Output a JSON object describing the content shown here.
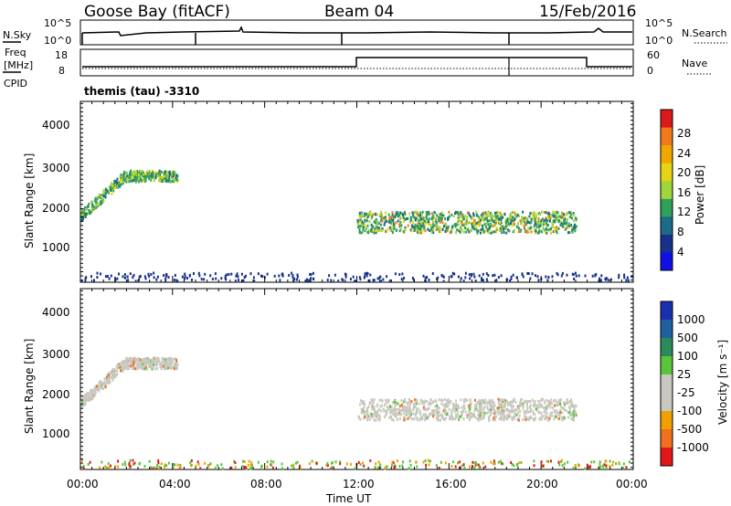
{
  "header": {
    "station": "Goose Bay (fitACF)",
    "beam": "Beam 04",
    "date": "15/Feb/2016"
  },
  "noise_panel": {
    "left_label": "N.Sky",
    "left_ticks": [
      "10^5",
      "10^0"
    ],
    "right_ticks": [
      "10^5",
      "10^0"
    ],
    "right_label": "N.Search"
  },
  "freq_panel": {
    "left_label_line1": "Freq",
    "left_label_line2": "[MHz]",
    "left_ticks": [
      "18",
      "8"
    ],
    "right_ticks": [
      "60",
      "0"
    ],
    "right_label": "Nave",
    "cpid_label": "CPID",
    "program": "themis (tau) -3310"
  },
  "chart_data": [
    {
      "type": "heatmap",
      "title": "",
      "ylabel": "Slant Range [km]",
      "xlabel": "",
      "yticks": [
        "1000",
        "2000",
        "3000",
        "4000"
      ],
      "ylim": [
        200,
        4500
      ],
      "xlim": [
        0,
        24
      ],
      "colorbar": {
        "label": "Power [dB]",
        "ticks": [
          "28",
          "24",
          "20",
          "16",
          "12",
          "8",
          "4"
        ],
        "colors": [
          "#dd1a1a",
          "#f07a1a",
          "#f0a800",
          "#e6d414",
          "#9ed63c",
          "#2fa05a",
          "#1f6a86",
          "#16328c",
          "#1010e6"
        ]
      },
      "scatter_regions": [
        {
          "label": "early arc",
          "t_start": 0.0,
          "t_end": 4.2,
          "range_start": 1750,
          "range_end": 2900,
          "dominant": "green/blue"
        },
        {
          "label": "ground scatter band",
          "t_start": 12.0,
          "t_end": 21.5,
          "range_start": 1400,
          "range_end": 1900,
          "dominant": "green/yellow"
        },
        {
          "label": "near range",
          "t_start": 0.0,
          "t_end": 24.0,
          "range_start": 250,
          "range_end": 450,
          "dominant": "blue"
        }
      ]
    },
    {
      "type": "heatmap",
      "title": "",
      "ylabel": "Slant Range [km]",
      "xlabel": "Time UT",
      "xticks": [
        "00:00",
        "04:00",
        "08:00",
        "12:00",
        "16:00",
        "20:00",
        "00:00"
      ],
      "yticks": [
        "1000",
        "2000",
        "3000",
        "4000"
      ],
      "ylim": [
        200,
        4500
      ],
      "xlim": [
        0,
        24
      ],
      "colorbar": {
        "label": "Velocity [m s⁻¹]",
        "ticks": [
          "1000",
          "500",
          "100",
          "25",
          "-25",
          "-100",
          "-500",
          "-1000"
        ],
        "colors": [
          "#1a2fb0",
          "#2060a0",
          "#2a8a5c",
          "#5cc43c",
          "#c8c8c0",
          "#c8c8c0",
          "#f0a000",
          "#f07020",
          "#e01818"
        ]
      },
      "scatter_regions": [
        {
          "label": "early arc",
          "t_start": 0.0,
          "t_end": 4.2,
          "range_start": 1750,
          "range_end": 2900,
          "dominant": "gray"
        },
        {
          "label": "ground scatter band",
          "t_start": 12.0,
          "t_end": 21.5,
          "range_start": 1400,
          "range_end": 1900,
          "dominant": "gray"
        },
        {
          "label": "near range",
          "t_start": 0.0,
          "t_end": 24.0,
          "range_start": 250,
          "range_end": 450,
          "dominant": "mixed"
        }
      ]
    }
  ]
}
